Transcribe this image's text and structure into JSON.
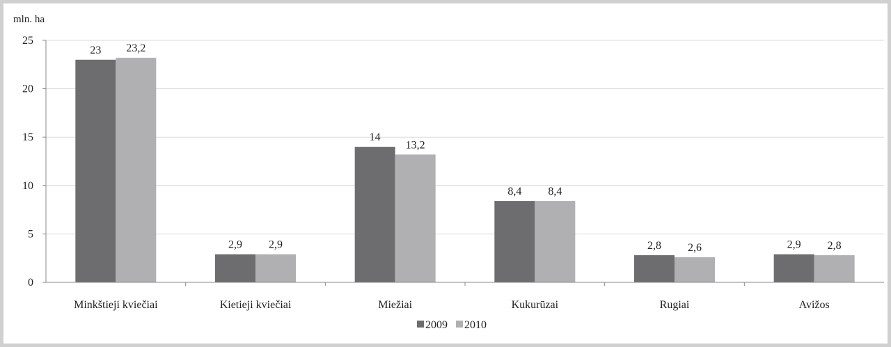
{
  "chart_data": {
    "type": "bar",
    "ylabel": "mln. ha",
    "categories": [
      "Minkštieji kviečiai",
      "Kietieji kviečiai",
      "Miežiai",
      "Kukurūzai",
      "Rugiai",
      "Avižos"
    ],
    "series": [
      {
        "name": "2009",
        "values": [
          23,
          2.9,
          14,
          8.4,
          2.8,
          2.9
        ],
        "labels": [
          "23",
          "2,9",
          "14",
          "8,4",
          "2,8",
          "2,9"
        ],
        "color": "#6d6d6f"
      },
      {
        "name": "2010",
        "values": [
          23.2,
          2.9,
          13.2,
          8.4,
          2.6,
          2.8
        ],
        "labels": [
          "23,2",
          "2,9",
          "13,2",
          "8,4",
          "2,6",
          "2,8"
        ],
        "color": "#b0b0b2"
      }
    ],
    "ylim": [
      0,
      25
    ],
    "yticks": [
      0,
      5,
      10,
      15,
      20,
      25
    ],
    "grid": true,
    "legend_position": "bottom"
  }
}
